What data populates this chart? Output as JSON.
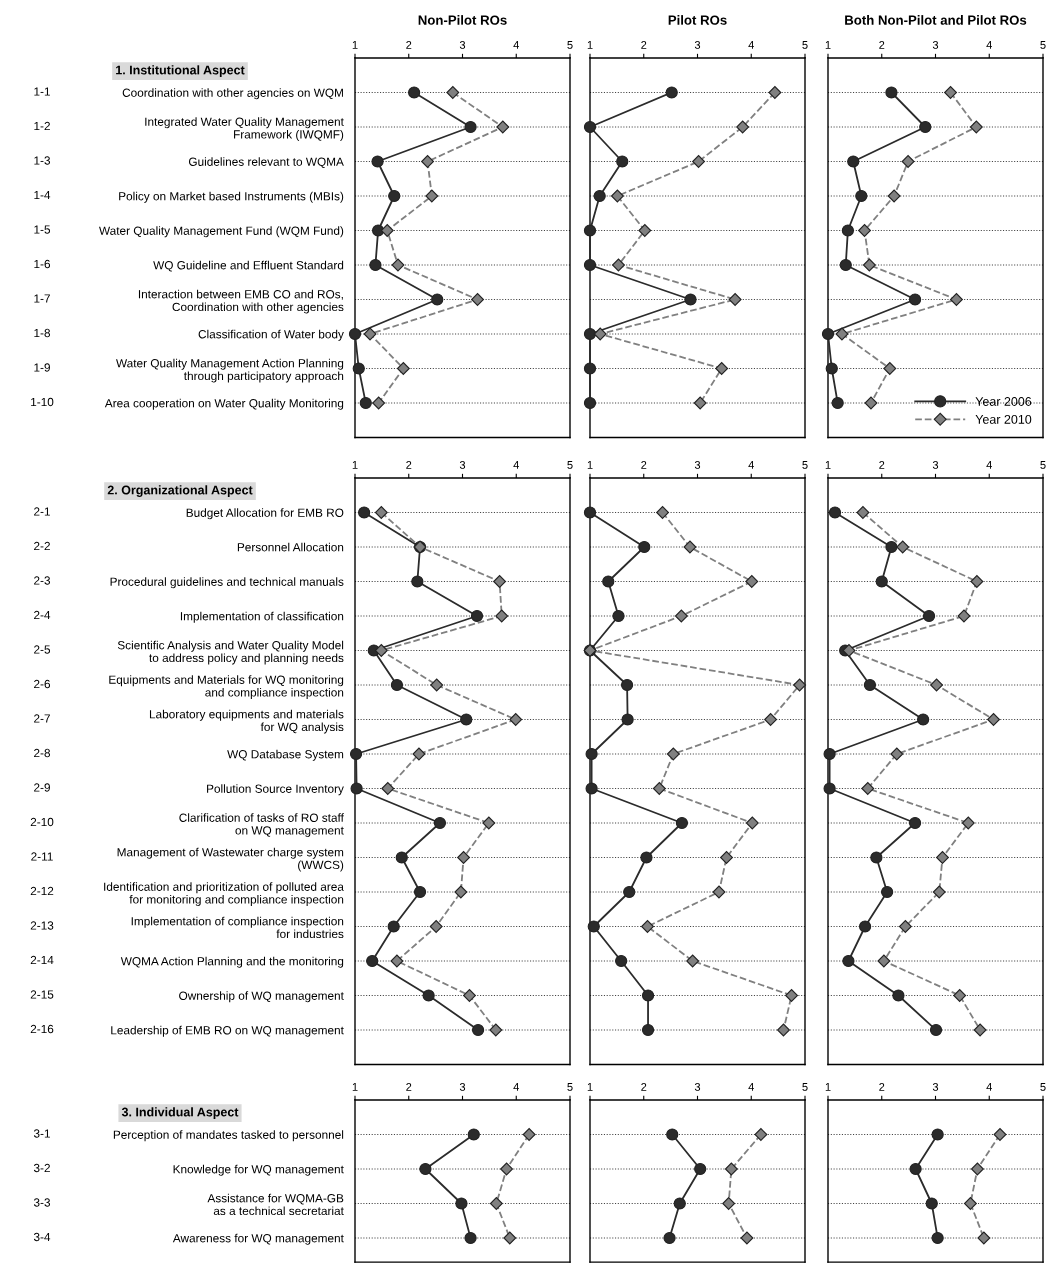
{
  "chart_data": [
    {
      "type": "line",
      "orientation": "horizontal",
      "title": "Non-Pilot ROs",
      "subtitle": "1. Institutional Aspect",
      "categories": [
        "Coordination with other agencies on WQM",
        "Integrated Water Quality Management\nFramework (IWQMF)",
        "Guidelines relevant to WQMA",
        "Policy on Market based Instruments (MBIs)",
        "Water Quality Management Fund (WQM Fund)",
        "WQ Guideline and Effluent Standard",
        "Interaction between EMB CO and ROs,\nCoordination with other agencies",
        "Classification of Water body",
        "Water Quality Management Action Planning\nthrough participatory approach",
        "Area cooperation on Water Quality Monitoring"
      ],
      "y2_categories": [
        "1-1",
        "1-2",
        "1-3",
        "1-4",
        "1-5",
        "1-6",
        "1-7",
        "1-8",
        "1-9",
        "1-10"
      ],
      "xlim": [
        1,
        5
      ],
      "xticks": [
        1,
        2,
        3,
        4,
        5
      ],
      "grid": "y",
      "series": [
        {
          "color": "#2b2b2b",
          "marker": "circle",
          "line_style": "solid",
          "values": [
            2.1,
            3.15,
            1.42,
            1.73,
            1.43,
            1.38,
            2.53,
            1.0,
            1.07,
            1.2
          ]
        },
        {
          "color": "#808080",
          "marker": "diamond",
          "line_style": "dashed",
          "values": [
            2.82,
            3.75,
            2.35,
            2.43,
            1.6,
            1.8,
            3.28,
            1.28,
            1.9,
            1.44
          ]
        }
      ]
    },
    {
      "type": "line",
      "orientation": "horizontal",
      "title": "Pilot ROs",
      "categories": [
        null,
        null,
        null,
        null,
        null,
        null,
        null,
        null,
        null,
        null
      ],
      "xlim": [
        1,
        5
      ],
      "xticks": [
        1,
        2,
        3,
        4,
        5
      ],
      "grid": "y",
      "tick_labels": "x",
      "series": [
        {
          "color": "#2b2b2b",
          "marker": "circle",
          "line_style": "solid",
          "values": [
            2.52,
            1.0,
            1.6,
            1.18,
            1.0,
            1.0,
            2.87,
            1.0,
            1.0,
            1.0
          ]
        },
        {
          "color": "#808080",
          "marker": "diamond",
          "line_style": "dashed",
          "values": [
            4.44,
            3.84,
            3.02,
            1.51,
            2.02,
            1.53,
            3.7,
            1.19,
            3.45,
            3.05
          ]
        }
      ]
    },
    {
      "type": "line",
      "orientation": "horizontal",
      "title": "Both Non-Pilot and Pilot ROs",
      "categories": [
        null,
        null,
        null,
        null,
        null,
        null,
        null,
        null,
        null,
        null
      ],
      "xlim": [
        1,
        5
      ],
      "xticks": [
        1,
        2,
        3,
        4,
        5
      ],
      "grid": "y",
      "tick_labels": "x",
      "legend": "bottom right",
      "series": [
        {
          "name": "Year 2006",
          "color": "#2b2b2b",
          "marker": "circle",
          "line_style": "solid",
          "values": [
            2.18,
            2.81,
            1.47,
            1.62,
            1.37,
            1.33,
            2.62,
            1.0,
            1.07,
            1.18
          ]
        },
        {
          "name": "Year 2010",
          "color": "#808080",
          "marker": "diamond",
          "line_style": "dashed",
          "values": [
            3.28,
            3.76,
            2.49,
            2.23,
            1.68,
            1.77,
            3.39,
            1.26,
            2.15,
            1.8
          ]
        }
      ]
    },
    {
      "type": "line",
      "orientation": "horizontal",
      "subtitle": "2. Organizational Aspect",
      "categories": [
        "Budget Allocation for EMB RO",
        "Personnel Allocation",
        "Procedural guidelines and technical manuals",
        "Implementation of classification",
        "Scientific Analysis and Water Quality Model\nto address policy and planning needs",
        "Equipments and Materials for WQ monitoring\nand compliance inspection",
        "Laboratory equipments and materials\nfor WQ analysis",
        "WQ Database System",
        "Pollution Source Inventory",
        "Clarification of tasks of RO staff\non WQ management",
        "Management of Wastewater charge system\n(WWCS)",
        "Identification and prioritization of polluted area\nfor monitoring and compliance inspection",
        "Implementation of compliance inspection\nfor industries",
        "WQMA Action Planning and the monitoring",
        "Ownership of WQ management",
        "Leadership of EMB RO on WQ management"
      ],
      "y2_categories": [
        "2-1",
        "2-2",
        "2-3",
        "2-4",
        "2-5",
        "2-6",
        "2-7",
        "2-8",
        "2-9",
        "2-10",
        "2-11",
        "2-12",
        "2-13",
        "2-14",
        "2-15",
        "2-16"
      ],
      "xlim": [
        1,
        5
      ],
      "xticks": [
        1,
        2,
        3,
        4,
        5
      ],
      "grid": "y",
      "series": [
        {
          "color": "#2b2b2b",
          "marker": "circle",
          "line_style": "solid",
          "values": [
            1.17,
            2.21,
            2.16,
            3.27,
            1.35,
            1.78,
            3.07,
            1.02,
            1.03,
            2.58,
            1.87,
            2.21,
            1.72,
            1.32,
            2.37,
            3.29
          ]
        },
        {
          "color": "#808080",
          "marker": "diamond",
          "line_style": "dashed",
          "values": [
            1.49,
            2.21,
            3.69,
            3.73,
            1.49,
            2.52,
            3.99,
            2.19,
            1.61,
            3.49,
            3.02,
            2.97,
            2.51,
            1.78,
            3.13,
            3.62
          ]
        }
      ]
    },
    {
      "type": "line",
      "orientation": "horizontal",
      "categories": [
        null,
        null,
        null,
        null,
        null,
        null,
        null,
        null,
        null,
        null,
        null,
        null,
        null,
        null,
        null,
        null
      ],
      "xlim": [
        1,
        5
      ],
      "xticks": [
        1,
        2,
        3,
        4,
        5
      ],
      "grid": "y",
      "tick_labels": "x",
      "series": [
        {
          "color": "#2b2b2b",
          "marker": "circle",
          "line_style": "solid",
          "values": [
            1.0,
            2.01,
            1.34,
            1.53,
            1.0,
            1.69,
            1.7,
            1.03,
            1.03,
            2.71,
            2.05,
            1.73,
            1.07,
            1.58,
            2.08,
            2.08
          ]
        },
        {
          "color": "#808080",
          "marker": "diamond",
          "line_style": "dashed",
          "values": [
            2.35,
            2.86,
            4.01,
            2.7,
            1.0,
            4.9,
            4.36,
            2.55,
            2.29,
            4.02,
            3.54,
            3.4,
            2.07,
            2.91,
            4.75,
            4.6
          ]
        }
      ]
    },
    {
      "type": "line",
      "orientation": "horizontal",
      "categories": [
        null,
        null,
        null,
        null,
        null,
        null,
        null,
        null,
        null,
        null,
        null,
        null,
        null,
        null,
        null,
        null
      ],
      "xlim": [
        1,
        5
      ],
      "xticks": [
        1,
        2,
        3,
        4,
        5
      ],
      "grid": "y",
      "tick_labels": "x",
      "series": [
        {
          "color": "#2b2b2b",
          "marker": "circle",
          "line_style": "solid",
          "values": [
            1.13,
            2.18,
            2.0,
            2.88,
            1.32,
            1.78,
            2.77,
            1.03,
            1.03,
            2.62,
            1.9,
            2.1,
            1.69,
            1.38,
            2.31,
            3.01
          ]
        },
        {
          "color": "#808080",
          "marker": "diamond",
          "line_style": "dashed",
          "values": [
            1.65,
            2.39,
            3.77,
            3.53,
            1.39,
            3.02,
            4.08,
            2.28,
            1.74,
            3.61,
            3.13,
            3.07,
            2.44,
            2.04,
            3.45,
            3.83
          ]
        }
      ]
    },
    {
      "type": "line",
      "orientation": "horizontal",
      "subtitle": "3. Individual Aspect",
      "categories": [
        "Perception of mandates tasked to personnel",
        "Knowledge for WQ management",
        "Assistance for WQMA-GB\nas a technical secretariat",
        "Awareness for WQ management"
      ],
      "y2_categories": [
        "3-1",
        "3-2",
        "3-3",
        "3-4"
      ],
      "xlim": [
        1,
        5
      ],
      "xticks": [
        1,
        2,
        3,
        4,
        5
      ],
      "grid": "y",
      "series": [
        {
          "color": "#2b2b2b",
          "marker": "circle",
          "line_style": "solid",
          "values": [
            3.21,
            2.31,
            2.98,
            3.15
          ]
        },
        {
          "color": "#808080",
          "marker": "diamond",
          "line_style": "dashed",
          "values": [
            4.24,
            3.82,
            3.63,
            3.88
          ]
        }
      ]
    },
    {
      "type": "line",
      "orientation": "horizontal",
      "categories": [
        null,
        null,
        null,
        null
      ],
      "xlim": [
        1,
        5
      ],
      "xticks": [
        1,
        2,
        3,
        4,
        5
      ],
      "grid": "y",
      "tick_labels": "x",
      "series": [
        {
          "color": "#2b2b2b",
          "marker": "circle",
          "line_style": "solid",
          "values": [
            2.53,
            3.05,
            2.67,
            2.48
          ]
        },
        {
          "color": "#808080",
          "marker": "diamond",
          "line_style": "dashed",
          "values": [
            4.18,
            3.63,
            3.58,
            3.92
          ]
        }
      ]
    },
    {
      "type": "line",
      "orientation": "horizontal",
      "categories": [
        null,
        null,
        null,
        null
      ],
      "xlim": [
        1,
        5
      ],
      "xticks": [
        1,
        2,
        3,
        4,
        5
      ],
      "grid": "y",
      "tick_labels": "x",
      "series": [
        {
          "color": "#2b2b2b",
          "marker": "circle",
          "line_style": "solid",
          "values": [
            3.04,
            2.63,
            2.93,
            3.04
          ]
        },
        {
          "color": "#808080",
          "marker": "diamond",
          "line_style": "dashed",
          "values": [
            4.2,
            3.78,
            3.65,
            3.9
          ]
        }
      ]
    }
  ]
}
